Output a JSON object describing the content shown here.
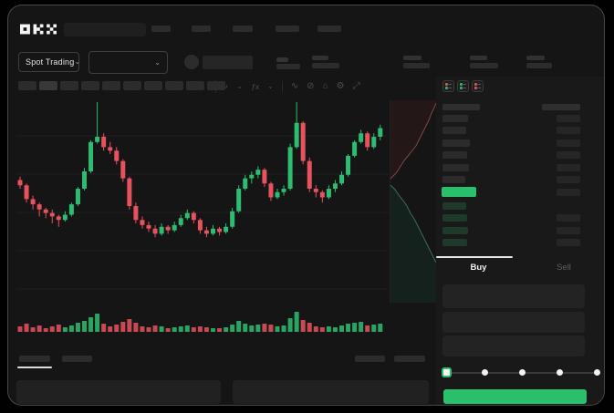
{
  "app": {
    "name": "OKX trading app",
    "logo_text": "OKX"
  },
  "topbar": {
    "nav_placeholder_count": 5
  },
  "market_bar": {
    "mode_selector": {
      "label": "Spot Trading",
      "chevron": "⌄"
    },
    "pair_selector": {
      "chevron": "⌄"
    },
    "stat_groups": 4
  },
  "chart_toolbar": {
    "timeframe_placeholder_count": 10,
    "icons": [
      {
        "name": "chart-type-icon",
        "glyph": "∿"
      },
      {
        "name": "chart-type-chevron-icon",
        "glyph": "⌄"
      },
      {
        "name": "indicators-icon",
        "glyph": "ƒx"
      },
      {
        "name": "indicators-chevron-icon",
        "glyph": "⌄"
      },
      {
        "name": "line-tool-icon",
        "glyph": "∿"
      },
      {
        "name": "eraser-icon",
        "glyph": "⊘"
      },
      {
        "name": "screenshot-icon",
        "glyph": "⌂"
      },
      {
        "name": "chart-settings-icon",
        "glyph": "⚙"
      },
      {
        "name": "fullscreen-icon",
        "glyph": "⤢"
      }
    ]
  },
  "orderbook": {
    "view_toggles": [
      {
        "name": "order-book-all-icon",
        "top": "#e6525e",
        "bottom": "#2abf6a"
      },
      {
        "name": "order-book-bids-icon",
        "top": "#2abf6a",
        "bottom": "#2abf6a"
      },
      {
        "name": "order-book-asks-icon",
        "top": "#e6525e",
        "bottom": "#e6525e"
      }
    ],
    "header": {
      "left_w": 41,
      "right_w": 42
    },
    "asks": [
      {
        "left_w": 28,
        "right_w": 26
      },
      {
        "left_w": 26,
        "right_w": 26
      },
      {
        "left_w": 30,
        "right_w": 26
      },
      {
        "left_w": 27,
        "right_w": 26
      },
      {
        "left_w": 29,
        "right_w": 26
      },
      {
        "left_w": 25,
        "right_w": 26
      }
    ],
    "last_price_row": {
      "left_w": 38,
      "right_w": 26,
      "color": "#2abf6a"
    },
    "bids": [
      {
        "left_w": 26,
        "right_w": 0
      },
      {
        "left_w": 27,
        "right_w": 26
      },
      {
        "left_w": 28,
        "right_w": 26
      },
      {
        "left_w": 27,
        "right_w": 26
      }
    ]
  },
  "trade_panel": {
    "tabs": [
      {
        "label": "Buy",
        "active": true
      },
      {
        "label": "Sell",
        "active": false
      }
    ],
    "input_placeholder_count": 3,
    "amount_slider": {
      "stops": 5,
      "active_stop": 0,
      "accent": "#2abf6a"
    },
    "submit_button": {
      "label": "",
      "color": "#2abf6a"
    }
  },
  "bottom_bar": {
    "tab_placeholder_count": 2,
    "right_button_count": 2,
    "row_panel_count": 2
  },
  "chart_data": {
    "type": "candlestick",
    "ylim": [
      0,
      100
    ],
    "grid": true,
    "colors": {
      "up": "#2ebd70",
      "down": "#e6525e"
    },
    "candles": [
      [
        55,
        57,
        50,
        52,
        6
      ],
      [
        52,
        53,
        42,
        44,
        9
      ],
      [
        44,
        46,
        38,
        41,
        5
      ],
      [
        41,
        42,
        34,
        38,
        7
      ],
      [
        38,
        39,
        33,
        36,
        4
      ],
      [
        36,
        38,
        30,
        34,
        6
      ],
      [
        34,
        35,
        28,
        32,
        8
      ],
      [
        32,
        37,
        31,
        35,
        5
      ],
      [
        35,
        42,
        34,
        41,
        7
      ],
      [
        41,
        51,
        40,
        50,
        10
      ],
      [
        50,
        62,
        49,
        60,
        12
      ],
      [
        60,
        78,
        59,
        77,
        16
      ],
      [
        77,
        100,
        76,
        80,
        20
      ],
      [
        80,
        82,
        72,
        74,
        9
      ],
      [
        74,
        77,
        70,
        72,
        6
      ],
      [
        72,
        74,
        64,
        66,
        8
      ],
      [
        66,
        67,
        54,
        56,
        11
      ],
      [
        56,
        57,
        38,
        40,
        14
      ],
      [
        40,
        42,
        30,
        32,
        10
      ],
      [
        32,
        34,
        27,
        29,
        6
      ],
      [
        29,
        31,
        25,
        27,
        5
      ],
      [
        27,
        29,
        22,
        24,
        7
      ],
      [
        24,
        30,
        23,
        28,
        6
      ],
      [
        28,
        29,
        24,
        26,
        4
      ],
      [
        26,
        31,
        25,
        29,
        5
      ],
      [
        29,
        35,
        28,
        33,
        6
      ],
      [
        33,
        38,
        32,
        36,
        7
      ],
      [
        36,
        37,
        30,
        32,
        5
      ],
      [
        32,
        33,
        24,
        26,
        6
      ],
      [
        26,
        28,
        22,
        24,
        5
      ],
      [
        24,
        29,
        23,
        27,
        4
      ],
      [
        27,
        28,
        23,
        25,
        4
      ],
      [
        25,
        30,
        24,
        28,
        5
      ],
      [
        28,
        39,
        27,
        37,
        8
      ],
      [
        37,
        52,
        36,
        50,
        12
      ],
      [
        50,
        58,
        49,
        56,
        9
      ],
      [
        56,
        60,
        53,
        58,
        7
      ],
      [
        58,
        63,
        56,
        61,
        8
      ],
      [
        61,
        62,
        51,
        53,
        9
      ],
      [
        53,
        54,
        43,
        45,
        8
      ],
      [
        45,
        50,
        44,
        48,
        6
      ],
      [
        48,
        52,
        46,
        50,
        7
      ],
      [
        50,
        76,
        49,
        74,
        15
      ],
      [
        74,
        100,
        73,
        88,
        22
      ],
      [
        88,
        89,
        64,
        66,
        13
      ],
      [
        66,
        68,
        48,
        50,
        10
      ],
      [
        50,
        52,
        45,
        48,
        6
      ],
      [
        48,
        49,
        42,
        45,
        5
      ],
      [
        45,
        52,
        44,
        50,
        6
      ],
      [
        50,
        55,
        48,
        53,
        5
      ],
      [
        53,
        60,
        52,
        58,
        7
      ],
      [
        58,
        70,
        57,
        69,
        9
      ],
      [
        69,
        78,
        68,
        77,
        10
      ],
      [
        77,
        84,
        76,
        82,
        11
      ],
      [
        82,
        83,
        72,
        74,
        7
      ],
      [
        74,
        82,
        73,
        80,
        8
      ],
      [
        80,
        87,
        78,
        85,
        9
      ]
    ],
    "depth": {
      "ask_fill": "#241718",
      "ask_stroke": "#7d4848",
      "bid_fill": "#14211c",
      "bid_stroke": "#3e6b5e",
      "asks": [
        [
          0,
          86
        ],
        [
          6,
          80
        ],
        [
          10,
          74
        ],
        [
          15,
          66
        ],
        [
          20,
          60
        ],
        [
          24,
          55
        ],
        [
          28,
          50
        ],
        [
          31,
          44
        ],
        [
          34,
          38
        ],
        [
          38,
          30
        ],
        [
          42,
          22
        ],
        [
          45,
          14
        ],
        [
          48,
          8
        ],
        [
          50,
          3
        ]
      ],
      "bids": [
        [
          0,
          93
        ],
        [
          5,
          98
        ],
        [
          9,
          104
        ],
        [
          14,
          110
        ],
        [
          18,
          116
        ],
        [
          22,
          124
        ],
        [
          26,
          130
        ],
        [
          30,
          138
        ],
        [
          34,
          146
        ],
        [
          38,
          154
        ],
        [
          41,
          160
        ],
        [
          44,
          166
        ],
        [
          47,
          172
        ],
        [
          50,
          178
        ]
      ]
    }
  }
}
